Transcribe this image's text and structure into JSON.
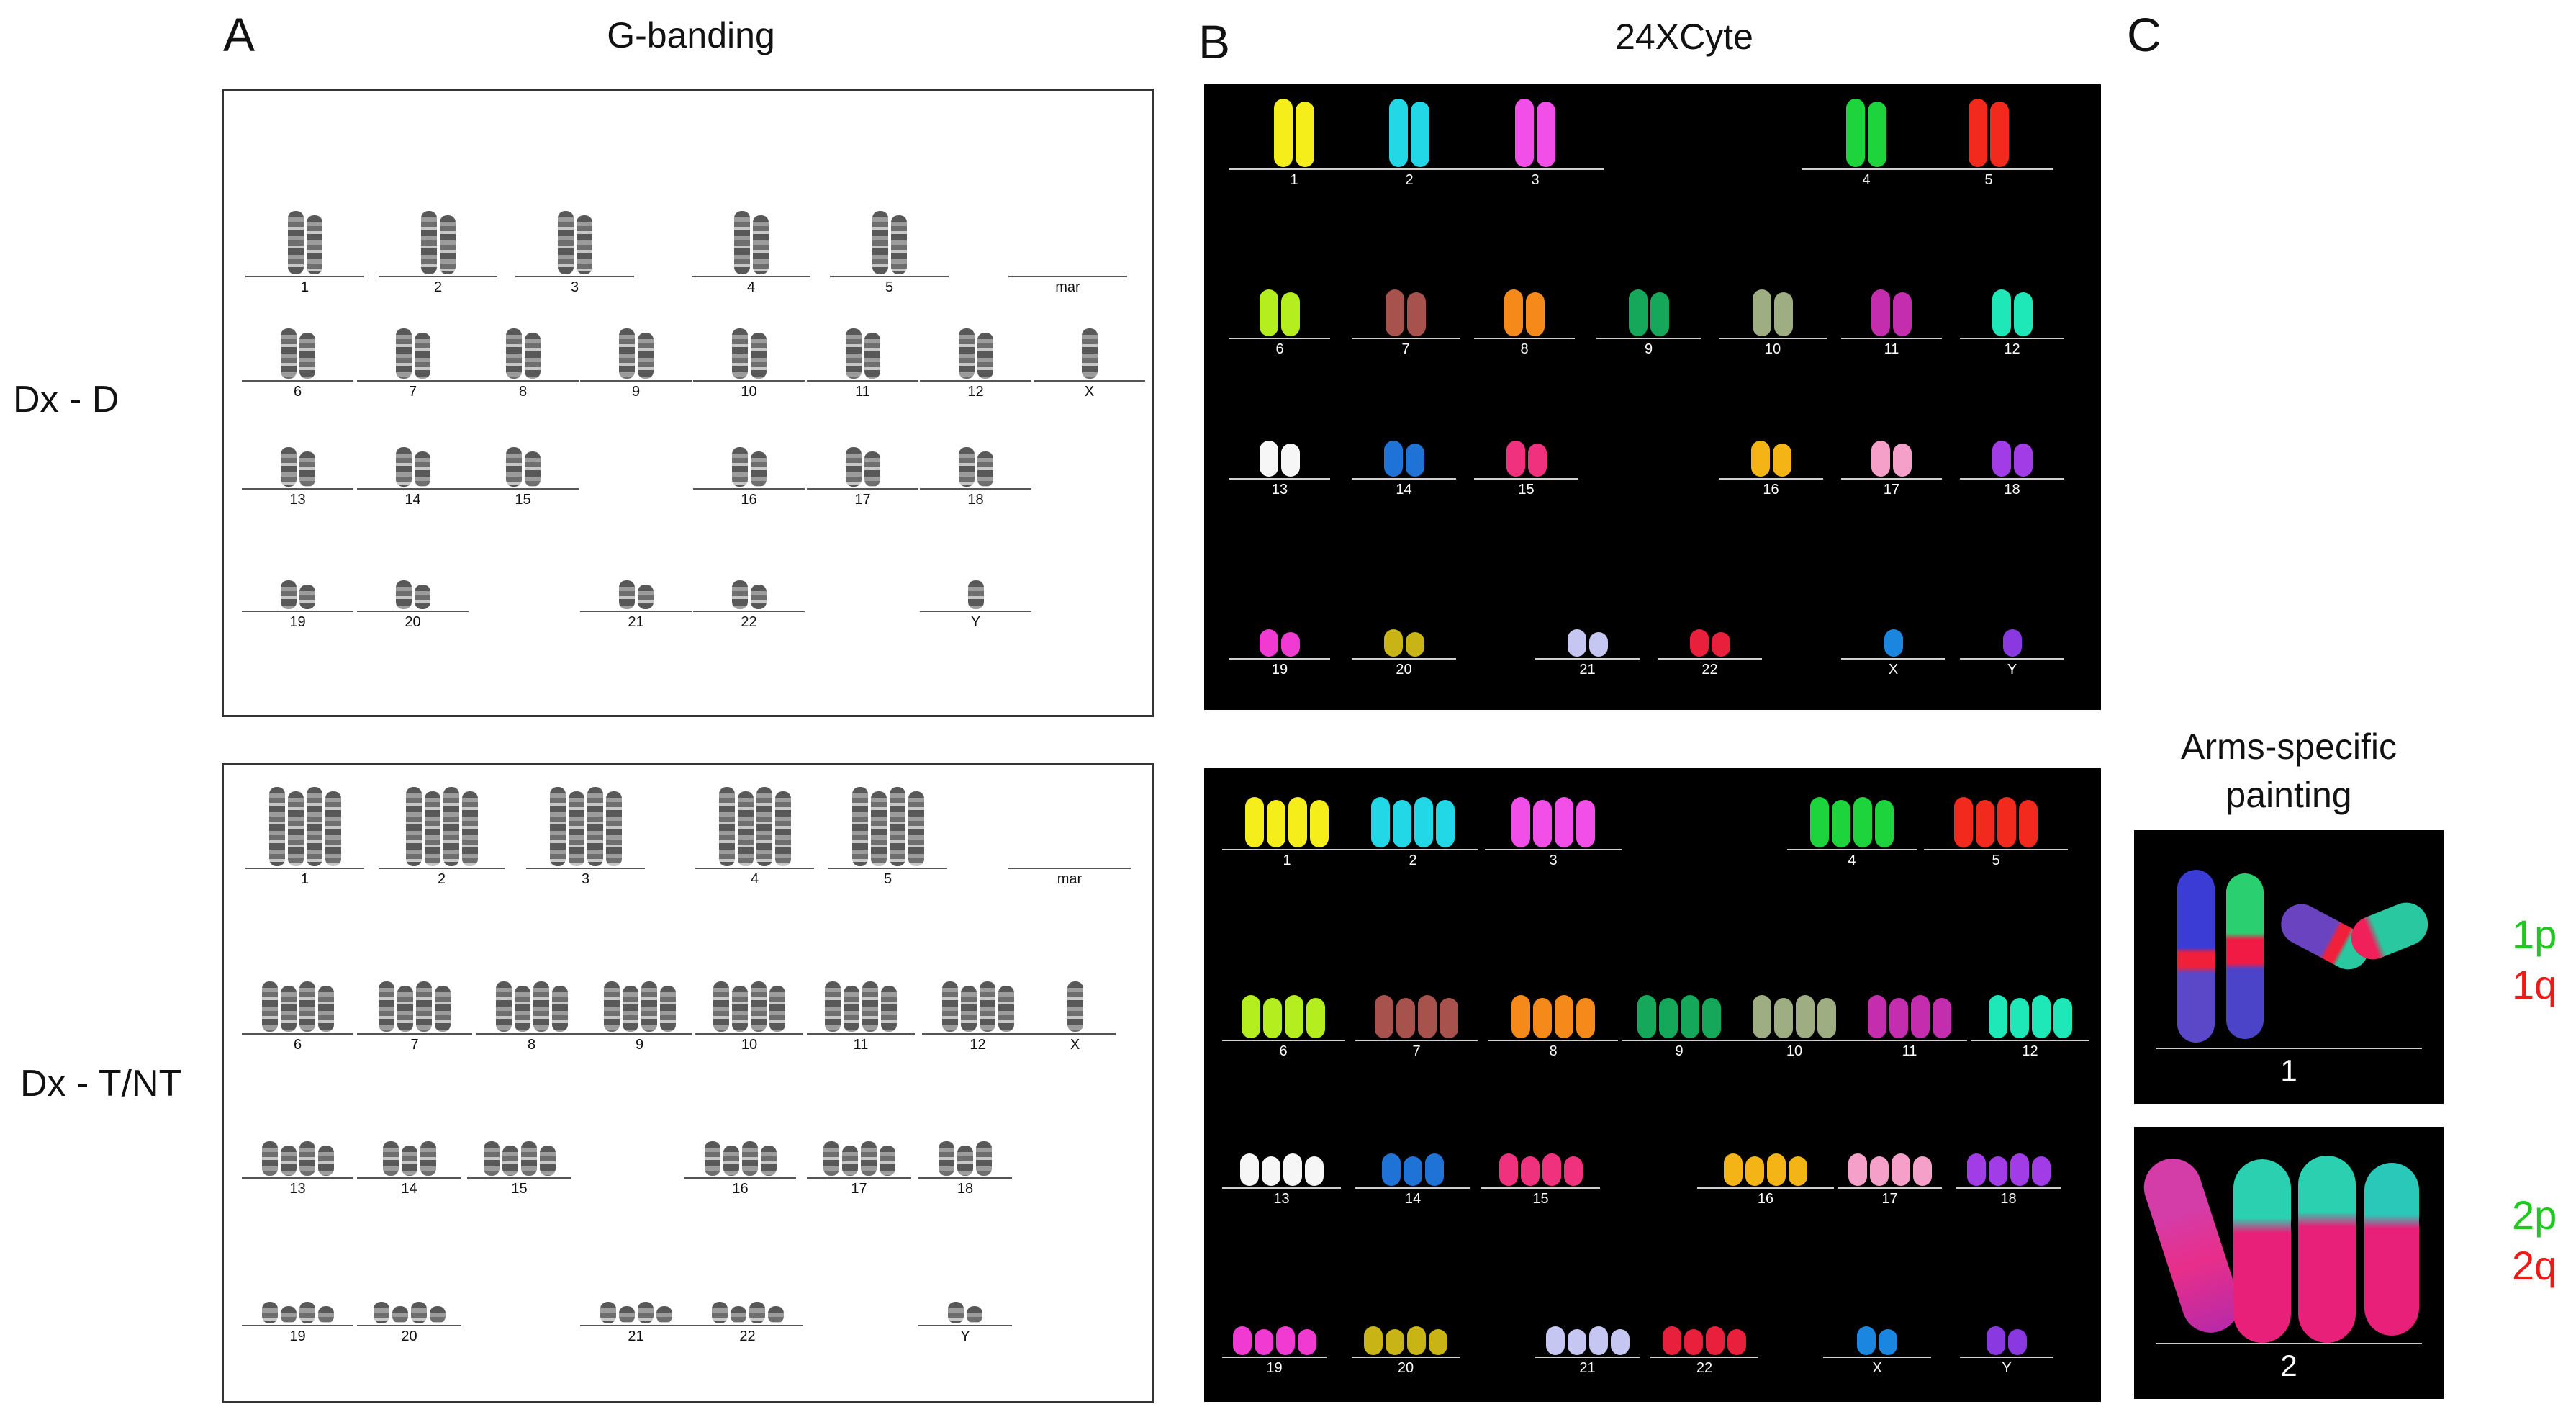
{
  "panels": {
    "a": {
      "letter": "A",
      "title": "G-banding"
    },
    "b": {
      "letter": "B",
      "title": "24XCyte"
    },
    "c": {
      "letter": "C",
      "title_line1": "Arms-specific",
      "title_line2": "painting"
    }
  },
  "rows": {
    "top": "Dx - D",
    "bottom": "Dx - T/NT"
  },
  "karyotype_labels": {
    "row1": [
      "1",
      "2",
      "3",
      "4",
      "5",
      "mar"
    ],
    "row2": [
      "6",
      "7",
      "8",
      "9",
      "10",
      "11",
      "12",
      "X"
    ],
    "row3": [
      "13",
      "14",
      "15",
      "16",
      "17",
      "18"
    ],
    "row4": [
      "19",
      "20",
      "21",
      "22",
      "Y"
    ]
  },
  "karyotype_labels_b": {
    "row1": [
      "1",
      "2",
      "3",
      "4",
      "5"
    ],
    "row2": [
      "6",
      "7",
      "8",
      "9",
      "10",
      "11",
      "12"
    ],
    "row3": [
      "13",
      "14",
      "15",
      "16",
      "17",
      "18"
    ],
    "row4": [
      "19",
      "20",
      "21",
      "22",
      "X",
      "Y"
    ]
  },
  "colors": {
    "1": "#f5ee1a",
    "2": "#22d8e6",
    "3": "#f24ee8",
    "4": "#1ed43c",
    "5": "#f22a1e",
    "6": "#b4ee1e",
    "7": "#a8524e",
    "8": "#f58a1a",
    "9": "#15a85a",
    "10": "#9fae82",
    "11": "#c42eae",
    "12": "#1ee8b8",
    "13": "#f6f6f6",
    "14": "#1f72d6",
    "15": "#f0327e",
    "16": "#f5b415",
    "17": "#f4a0c8",
    "18": "#a23ce6",
    "19": "#f03ad2",
    "20": "#c8b414",
    "21": "#c6c6f2",
    "22": "#e8203c",
    "X": "#1a86e0",
    "Y": "#8a38e0"
  },
  "arms": {
    "img1": {
      "number": "1",
      "p_label": "1p",
      "q_label": "1q",
      "p_color": "#1ec81e",
      "q_color": "#ee1a1a"
    },
    "img2": {
      "number": "2",
      "p_label": "2p",
      "q_label": "2q",
      "p_color": "#1ec81e",
      "q_color": "#ee1a1a"
    }
  }
}
